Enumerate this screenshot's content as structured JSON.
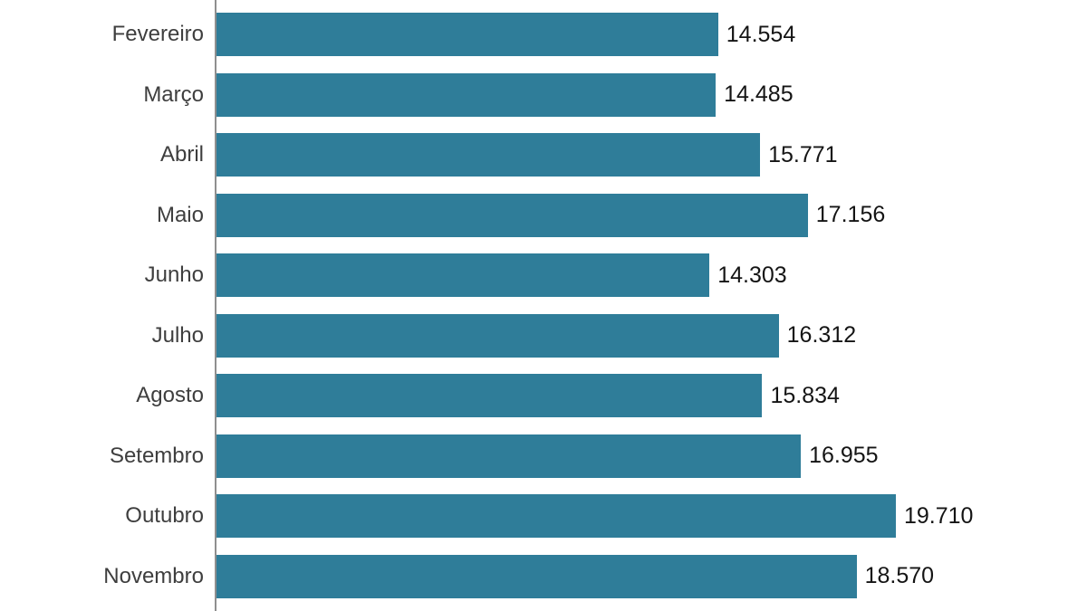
{
  "chart_data": {
    "type": "bar",
    "orientation": "horizontal",
    "title": "",
    "xlabel": "",
    "ylabel": "",
    "grid": false,
    "legend_position": "none",
    "xlim": [
      0,
      20000
    ],
    "categories": [
      "Fevereiro",
      "Março",
      "Abril",
      "Maio",
      "Junho",
      "Julho",
      "Agosto",
      "Setembro",
      "Outubro",
      "Novembro"
    ],
    "values": [
      14554,
      14485,
      15771,
      17156,
      14303,
      16312,
      15834,
      16955,
      19710,
      18570
    ],
    "value_labels": [
      "14.554",
      "14.485",
      "15.771",
      "17.156",
      "14.303",
      "16.312",
      "15.834",
      "16.955",
      "19.710",
      "18.570"
    ],
    "colors": {
      "bar": "#2f7d99",
      "axis_line": "#8f8f8f",
      "category_label": "#3e3e3e",
      "value_label": "#141414",
      "background": "#ffffff"
    }
  }
}
